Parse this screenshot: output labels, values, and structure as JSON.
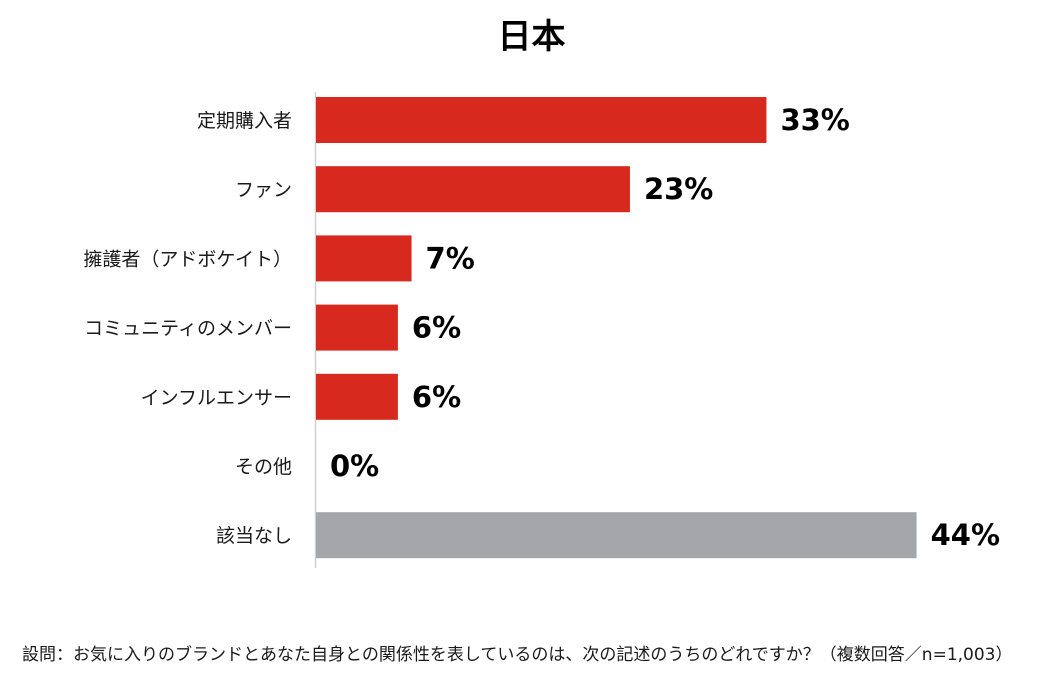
{
  "chart_data": {
    "type": "bar",
    "orientation": "horizontal",
    "title": "日本",
    "categories": [
      "定期購入者",
      "ファン",
      "擁護者（アドボケイト）",
      "コミュニティのメンバー",
      "インフルエンサー",
      "その他",
      "該当なし"
    ],
    "values": [
      33,
      23,
      7,
      6,
      6,
      0,
      44
    ],
    "value_labels": [
      "33%",
      "23%",
      "7%",
      "6%",
      "6%",
      "0%",
      "44%"
    ],
    "bar_colors": [
      "#d7291e",
      "#d7291e",
      "#d7291e",
      "#d7291e",
      "#d7291e",
      "#d7291e",
      "#a4a6a9"
    ],
    "xlim": [
      0,
      44
    ],
    "xlabel": "",
    "ylabel": "",
    "grid": false
  },
  "footnote": "設問：お気に入りのブランドとあなた自身との関係性を表しているのは、次の記述のうちのどれですか？（複数回答／n=1,003）"
}
